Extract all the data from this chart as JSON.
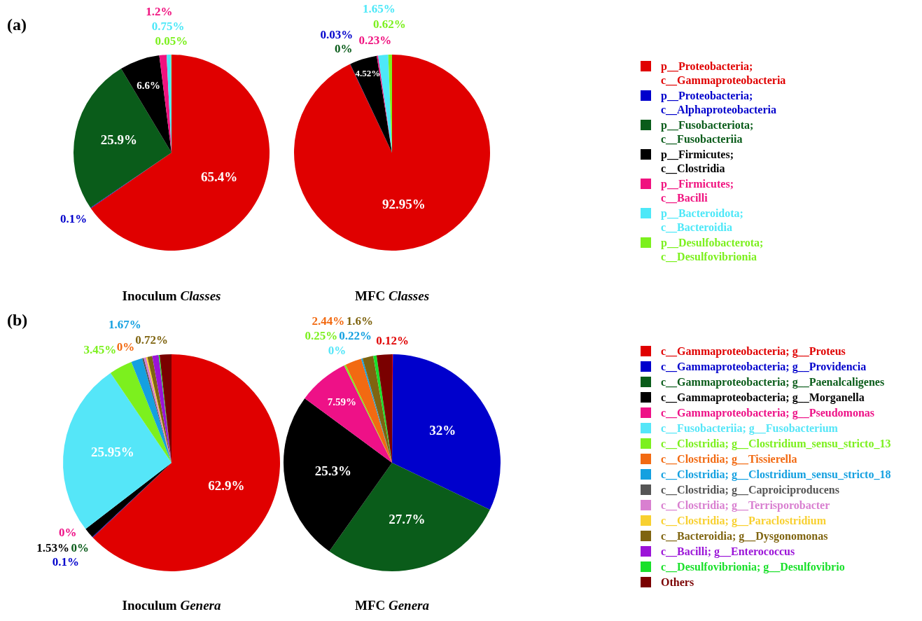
{
  "chart_data": [
    {
      "type": "pie",
      "title": "Inoculum Classes",
      "annotations": [
        "(a)"
      ],
      "categories": [
        null,
        null,
        null,
        null,
        null,
        null,
        null
      ],
      "values": [
        65.4,
        0.1,
        25.9,
        6.6,
        1.2,
        0.75,
        0.05
      ],
      "value_labels": [
        "65.4%",
        "0.1%",
        "25.9%",
        "6.6%",
        "1.2%",
        "0.75%",
        "0.05%"
      ],
      "colors": [
        "#e00000",
        "#0000cc",
        "#0a5c1a",
        "#000000",
        "#f0127f",
        "#4de8f8",
        "#7cf01e"
      ]
    },
    {
      "type": "pie",
      "title": "MFC Classes",
      "legend": "right",
      "categories": [
        "p__Proteobacteria; c__Gammaproteobacteria",
        "p__Proteobacteria; c__Alphaproteobacteria",
        "p__Fusobacteriota; c__Fusobacteriia",
        "p__Firmicutes; c__Clostridia",
        "p__Firmicutes; c__Bacilli",
        "p__Bacteroidota; c__Bacteroidia",
        "p__Desulfobacterota; c__Desulfovibrionia"
      ],
      "values": [
        92.95,
        0.03,
        0,
        4.52,
        0.23,
        1.65,
        0.62
      ],
      "value_labels": [
        "92.95%",
        "0.03%",
        "0%",
        "4.52%",
        "0.23%",
        "1.65%",
        "0.62%"
      ],
      "colors": [
        "#e00000",
        "#0000cc",
        "#0a5c1a",
        "#000000",
        "#f0127f",
        "#4de8f8",
        "#7cf01e"
      ]
    },
    {
      "type": "pie",
      "title": "Inoculum Genera",
      "annotations": [
        "(b)"
      ],
      "categories": [
        null,
        null,
        null,
        null,
        null,
        null,
        null,
        null,
        null,
        null,
        null,
        null,
        null,
        null,
        null,
        null
      ],
      "values": [
        62.9,
        0.1,
        0,
        1.53,
        0,
        25.95,
        3.45,
        0,
        1.67,
        0.25,
        0.35,
        0.2,
        0.72,
        0.95,
        0.15,
        1.75
      ],
      "value_labels": [
        "62.9%",
        "0.1%",
        "0%",
        "1.53%",
        "0%",
        "25.95%",
        "3.45%",
        "0%",
        "1.67%",
        null,
        null,
        null,
        "0.72%",
        null,
        null,
        null
      ],
      "colors": [
        "#e00000",
        "#0000cc",
        "#0a5c1a",
        "#000000",
        "#ee1187",
        "#55e6f8",
        "#7cf01e",
        "#f26a12",
        "#14a0e0",
        "#555555",
        "#d97fd0",
        "#f8d030",
        "#7f6410",
        "#9b14d8",
        "#19e02a",
        "#7a0000"
      ]
    },
    {
      "type": "pie",
      "title": "MFC Genera",
      "legend": "right",
      "categories": [
        "c__Gammaproteobacteria; g__Proteus",
        "c__Gammaproteobacteria; g__Providencia",
        "c__Gammaproteobacteria; g__Paenalcaligenes",
        "c__Gammaproteobacteria; g__Morganella",
        "c__Gammaproteobacteria; g__Pseudomonas",
        "c__Fusobacteriia; g__Fusobacterium",
        "c__Clostridia; g__Clostridium_sensu_stricto_13",
        "c__Clostridia; g__Tissierella",
        "c__Clostridia; g__Clostridium_sensu_stricto_18",
        "c__Clostridia; g__Caproiciproducens",
        "c__Clostridia; g__Terrisporobacter",
        "c__Clostridia; g__Paraclostridium",
        "c__Bacteroidia; g__Dysgonomonas",
        "c__Bacilli; g__Enterococcus",
        "c__Desulfovibrionia; g__Desulfovibrio",
        "Others"
      ],
      "values": [
        0.12,
        32,
        27.7,
        25.3,
        7.59,
        0,
        0.25,
        2.44,
        0.22,
        0,
        0,
        0,
        1.6,
        0,
        0.5,
        2.28
      ],
      "value_labels": [
        "0.12%",
        "32%",
        "27.7%",
        "25.3%",
        "7.59%",
        "0%",
        "0.25%",
        "2.44%",
        "0.22%",
        null,
        null,
        null,
        "1.6%",
        null,
        null,
        null
      ],
      "colors": [
        "#e00000",
        "#0000cc",
        "#0a5c1a",
        "#000000",
        "#ee1187",
        "#55e6f8",
        "#7cf01e",
        "#f26a12",
        "#14a0e0",
        "#555555",
        "#d97fd0",
        "#f8d030",
        "#7f6410",
        "#9b14d8",
        "#19e02a",
        "#7a0000"
      ]
    }
  ]
}
